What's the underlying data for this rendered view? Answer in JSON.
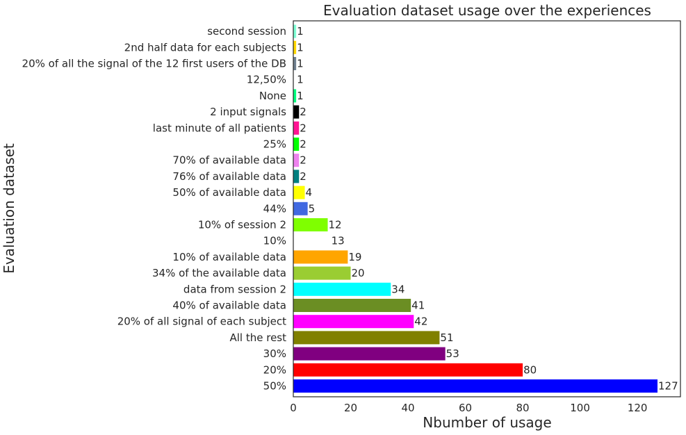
{
  "chart_data": {
    "type": "bar",
    "orientation": "horizontal",
    "title": "Evaluation dataset usage over the experiences",
    "xlabel": "Nbumber of usage",
    "ylabel": "Evaluation dataset",
    "xlim": [
      0,
      135
    ],
    "xticks": [
      0,
      20,
      40,
      60,
      80,
      100,
      120
    ],
    "grid": false,
    "categories": [
      "50%",
      "20%",
      "30%",
      "All the rest",
      "20% of all signal of each subject",
      "40% of available data",
      "data from session 2",
      "34% of the available data",
      "10% of available data",
      "10%",
      "10% of session 2",
      "44%",
      "50% of available data",
      "76% of available data",
      "70% of available data",
      "25%",
      "last minute of all patients",
      "2 input signals",
      "None",
      "12,50%",
      "20% of all the signal of the 12 first users of the DB",
      "2nd half data for each subjects",
      "second session"
    ],
    "values": [
      127,
      80,
      53,
      51,
      42,
      41,
      34,
      20,
      19,
      13,
      12,
      5,
      4,
      2,
      2,
      2,
      2,
      2,
      1,
      1,
      1,
      1,
      1
    ],
    "colors": [
      "#0000ff",
      "#ff0000",
      "#800080",
      "#808000",
      "#ff00ff",
      "#6b8e23",
      "#00ffff",
      "#9acd32",
      "#ffa500",
      "#ffffff",
      "#7fff00",
      "#4169e1",
      "#ffff00",
      "#008080",
      "#ee82ee",
      "#00ff00",
      "#ff1493",
      "#000000",
      "#00ff7f",
      "#ffffff",
      "#708090",
      "#ffd700",
      "#7fffd4"
    ]
  }
}
